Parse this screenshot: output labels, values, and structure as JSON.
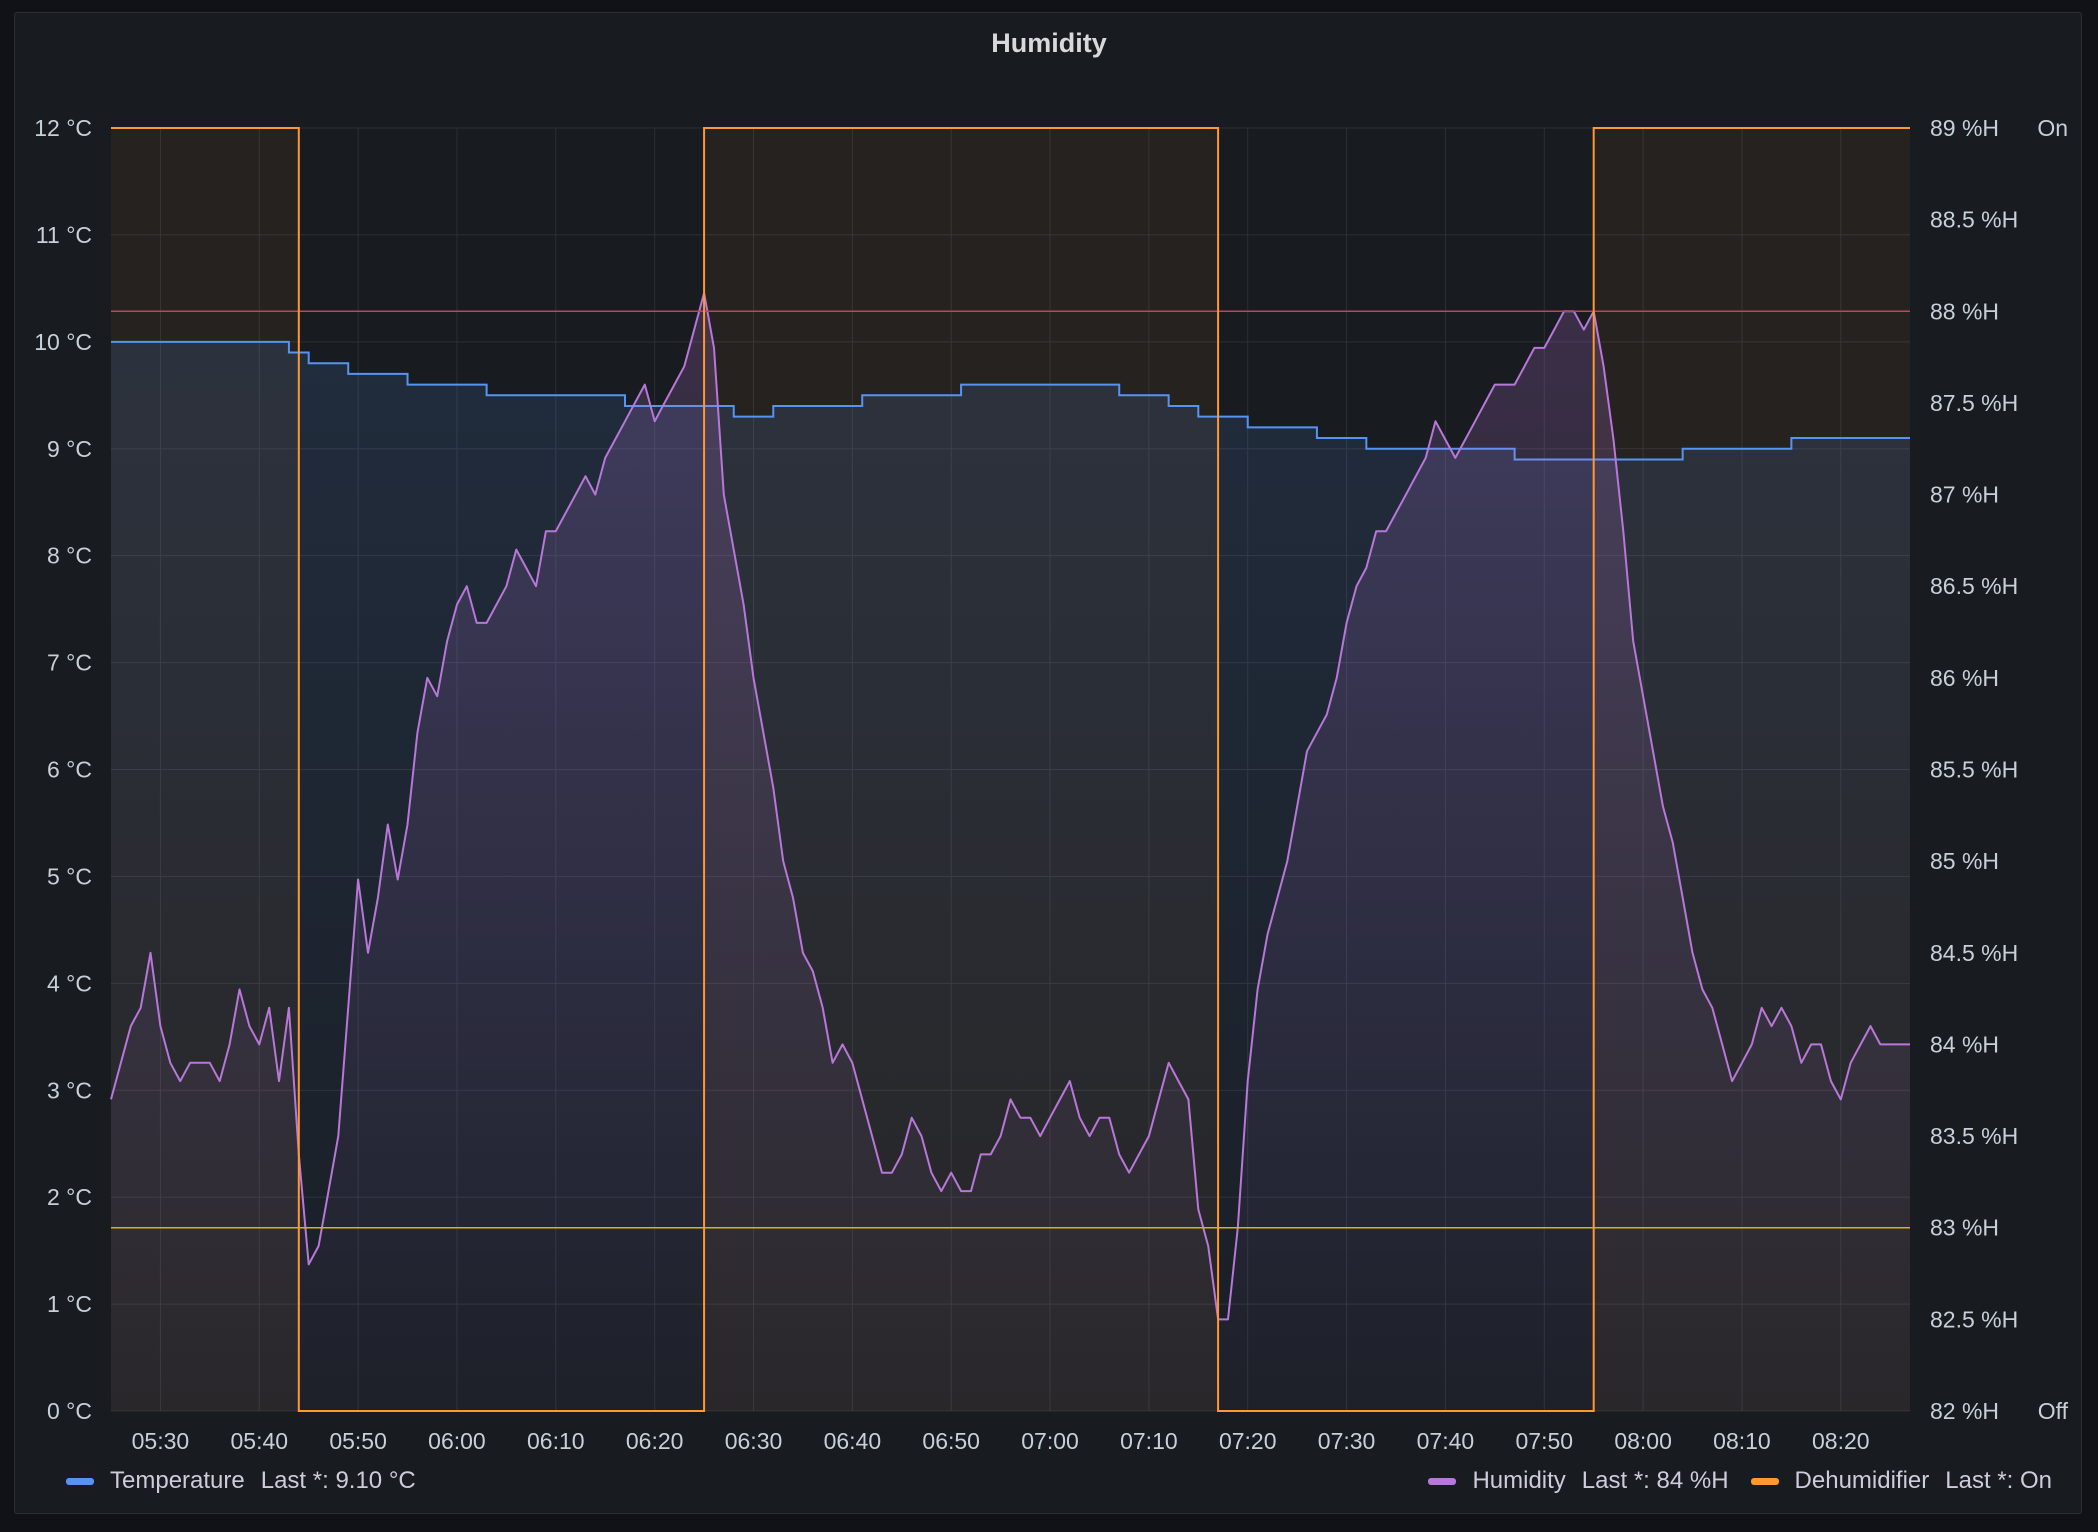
{
  "panel": {
    "title": "Humidity"
  },
  "colors": {
    "temperature": "#5794f2",
    "humidity": "#b877d9",
    "dehumidifier": "#ff9830",
    "threshold_high": "#c4454f",
    "threshold_low": "#e0b400",
    "grid": "#2c2f36",
    "tick_text": "#c7d0d9"
  },
  "legend": {
    "temperature": {
      "name": "Temperature",
      "value": "Last *: 9.10 °C"
    },
    "humidity": {
      "name": "Humidity",
      "value": "Last *: 84 %H"
    },
    "dehumidifier": {
      "name": "Dehumidifier",
      "value": "Last *: On"
    }
  },
  "chart_data": {
    "type": "line",
    "title": "Humidity",
    "x_range": [
      "05:25",
      "08:27"
    ],
    "x_ticks": [
      "05:30",
      "05:40",
      "05:50",
      "06:00",
      "06:10",
      "06:20",
      "06:30",
      "06:40",
      "06:50",
      "07:00",
      "07:10",
      "07:20",
      "07:30",
      "07:40",
      "07:50",
      "08:00",
      "08:10",
      "08:20"
    ],
    "y_left": {
      "unit": "°C",
      "range": [
        0,
        12
      ],
      "ticks": [
        "0 °C",
        "1 °C",
        "2 °C",
        "3 °C",
        "4 °C",
        "5 °C",
        "6 °C",
        "7 °C",
        "8 °C",
        "9 °C",
        "10 °C",
        "11 °C",
        "12 °C"
      ]
    },
    "y_right": {
      "unit": "%H",
      "range": [
        82,
        89
      ],
      "ticks": [
        "82 %H",
        "82.5 %H",
        "83 %H",
        "83.5 %H",
        "84 %H",
        "84.5 %H",
        "85 %H",
        "85.5 %H",
        "86 %H",
        "86.5 %H",
        "87 %H",
        "87.5 %H",
        "88 %H",
        "88.5 %H",
        "89 %H"
      ]
    },
    "y_state": {
      "ticks": [
        "Off",
        "On"
      ]
    },
    "grid": true,
    "legend_position": "bottom",
    "thresholds": [
      {
        "axis": "right",
        "value": 88
      },
      {
        "axis": "right",
        "value": 83
      }
    ],
    "series": [
      {
        "name": "Temperature",
        "axis": "left",
        "step": true,
        "fill": true,
        "points": [
          [
            "05:25",
            10.0
          ],
          [
            "05:42",
            10.0
          ],
          [
            "05:43",
            9.9
          ],
          [
            "05:45",
            9.8
          ],
          [
            "05:48",
            9.8
          ],
          [
            "05:49",
            9.7
          ],
          [
            "05:54",
            9.7
          ],
          [
            "05:55",
            9.6
          ],
          [
            "06:02",
            9.6
          ],
          [
            "06:03",
            9.5
          ],
          [
            "06:16",
            9.5
          ],
          [
            "06:17",
            9.4
          ],
          [
            "06:27",
            9.4
          ],
          [
            "06:28",
            9.3
          ],
          [
            "06:31",
            9.3
          ],
          [
            "06:32",
            9.4
          ],
          [
            "06:40",
            9.4
          ],
          [
            "06:41",
            9.5
          ],
          [
            "06:50",
            9.5
          ],
          [
            "06:51",
            9.6
          ],
          [
            "07:06",
            9.6
          ],
          [
            "07:07",
            9.5
          ],
          [
            "07:11",
            9.5
          ],
          [
            "07:12",
            9.4
          ],
          [
            "07:14",
            9.4
          ],
          [
            "07:15",
            9.3
          ],
          [
            "07:19",
            9.3
          ],
          [
            "07:20",
            9.2
          ],
          [
            "07:26",
            9.2
          ],
          [
            "07:27",
            9.1
          ],
          [
            "07:31",
            9.1
          ],
          [
            "07:32",
            9.0
          ],
          [
            "07:46",
            9.0
          ],
          [
            "07:47",
            8.9
          ],
          [
            "08:03",
            8.9
          ],
          [
            "08:04",
            9.0
          ],
          [
            "08:14",
            9.0
          ],
          [
            "08:15",
            9.1
          ],
          [
            "08:27",
            9.1
          ]
        ]
      },
      {
        "name": "Humidity",
        "axis": "right",
        "step": false,
        "fill": true,
        "points": [
          [
            "05:25",
            83.7
          ],
          [
            "05:26",
            83.9
          ],
          [
            "05:27",
            84.1
          ],
          [
            "05:28",
            84.2
          ],
          [
            "05:29",
            84.5
          ],
          [
            "05:30",
            84.1
          ],
          [
            "05:31",
            83.9
          ],
          [
            "05:32",
            83.8
          ],
          [
            "05:33",
            83.9
          ],
          [
            "05:35",
            83.9
          ],
          [
            "05:36",
            83.8
          ],
          [
            "05:37",
            84.0
          ],
          [
            "05:38",
            84.3
          ],
          [
            "05:39",
            84.1
          ],
          [
            "05:40",
            84.0
          ],
          [
            "05:41",
            84.2
          ],
          [
            "05:42",
            83.8
          ],
          [
            "05:43",
            84.2
          ],
          [
            "05:44",
            83.4
          ],
          [
            "05:45",
            82.8
          ],
          [
            "05:46",
            82.9
          ],
          [
            "05:47",
            83.2
          ],
          [
            "05:48",
            83.5
          ],
          [
            "05:49",
            84.2
          ],
          [
            "05:50",
            84.9
          ],
          [
            "05:51",
            84.5
          ],
          [
            "05:52",
            84.8
          ],
          [
            "05:53",
            85.2
          ],
          [
            "05:54",
            84.9
          ],
          [
            "05:55",
            85.2
          ],
          [
            "05:56",
            85.7
          ],
          [
            "05:57",
            86.0
          ],
          [
            "05:58",
            85.9
          ],
          [
            "05:59",
            86.2
          ],
          [
            "06:00",
            86.4
          ],
          [
            "06:01",
            86.5
          ],
          [
            "06:02",
            86.3
          ],
          [
            "06:03",
            86.3
          ],
          [
            "06:04",
            86.4
          ],
          [
            "06:05",
            86.5
          ],
          [
            "06:06",
            86.7
          ],
          [
            "06:07",
            86.6
          ],
          [
            "06:08",
            86.5
          ],
          [
            "06:09",
            86.8
          ],
          [
            "06:10",
            86.8
          ],
          [
            "06:11",
            86.9
          ],
          [
            "06:12",
            87.0
          ],
          [
            "06:13",
            87.1
          ],
          [
            "06:14",
            87.0
          ],
          [
            "06:15",
            87.2
          ],
          [
            "06:16",
            87.3
          ],
          [
            "06:17",
            87.4
          ],
          [
            "06:18",
            87.5
          ],
          [
            "06:19",
            87.6
          ],
          [
            "06:20",
            87.4
          ],
          [
            "06:21",
            87.5
          ],
          [
            "06:22",
            87.6
          ],
          [
            "06:23",
            87.7
          ],
          [
            "06:24",
            87.9
          ],
          [
            "06:25",
            88.1
          ],
          [
            "06:26",
            87.8
          ],
          [
            "06:27",
            87.0
          ],
          [
            "06:28",
            86.7
          ],
          [
            "06:29",
            86.4
          ],
          [
            "06:30",
            86.0
          ],
          [
            "06:31",
            85.7
          ],
          [
            "06:32",
            85.4
          ],
          [
            "06:33",
            85.0
          ],
          [
            "06:34",
            84.8
          ],
          [
            "06:35",
            84.5
          ],
          [
            "06:36",
            84.4
          ],
          [
            "06:37",
            84.2
          ],
          [
            "06:38",
            83.9
          ],
          [
            "06:39",
            84.0
          ],
          [
            "06:40",
            83.9
          ],
          [
            "06:41",
            83.7
          ],
          [
            "06:42",
            83.5
          ],
          [
            "06:43",
            83.3
          ],
          [
            "06:44",
            83.3
          ],
          [
            "06:45",
            83.4
          ],
          [
            "06:46",
            83.6
          ],
          [
            "06:47",
            83.5
          ],
          [
            "06:48",
            83.3
          ],
          [
            "06:49",
            83.2
          ],
          [
            "06:50",
            83.3
          ],
          [
            "06:51",
            83.2
          ],
          [
            "06:52",
            83.2
          ],
          [
            "06:53",
            83.4
          ],
          [
            "06:54",
            83.4
          ],
          [
            "06:55",
            83.5
          ],
          [
            "06:56",
            83.7
          ],
          [
            "06:57",
            83.6
          ],
          [
            "06:58",
            83.6
          ],
          [
            "06:59",
            83.5
          ],
          [
            "07:00",
            83.6
          ],
          [
            "07:01",
            83.7
          ],
          [
            "07:02",
            83.8
          ],
          [
            "07:03",
            83.6
          ],
          [
            "07:04",
            83.5
          ],
          [
            "07:05",
            83.6
          ],
          [
            "07:06",
            83.6
          ],
          [
            "07:07",
            83.4
          ],
          [
            "07:08",
            83.3
          ],
          [
            "07:09",
            83.4
          ],
          [
            "07:10",
            83.5
          ],
          [
            "07:11",
            83.7
          ],
          [
            "07:12",
            83.9
          ],
          [
            "07:13",
            83.8
          ],
          [
            "07:14",
            83.7
          ],
          [
            "07:15",
            83.1
          ],
          [
            "07:16",
            82.9
          ],
          [
            "07:17",
            82.5
          ],
          [
            "07:18",
            82.5
          ],
          [
            "07:19",
            83.0
          ],
          [
            "07:20",
            83.8
          ],
          [
            "07:21",
            84.3
          ],
          [
            "07:22",
            84.6
          ],
          [
            "07:23",
            84.8
          ],
          [
            "07:24",
            85.0
          ],
          [
            "07:25",
            85.3
          ],
          [
            "07:26",
            85.6
          ],
          [
            "07:27",
            85.7
          ],
          [
            "07:28",
            85.8
          ],
          [
            "07:29",
            86.0
          ],
          [
            "07:30",
            86.3
          ],
          [
            "07:31",
            86.5
          ],
          [
            "07:32",
            86.6
          ],
          [
            "07:33",
            86.8
          ],
          [
            "07:34",
            86.8
          ],
          [
            "07:35",
            86.9
          ],
          [
            "07:36",
            87.0
          ],
          [
            "07:37",
            87.1
          ],
          [
            "07:38",
            87.2
          ],
          [
            "07:39",
            87.4
          ],
          [
            "07:40",
            87.3
          ],
          [
            "07:41",
            87.2
          ],
          [
            "07:42",
            87.3
          ],
          [
            "07:43",
            87.4
          ],
          [
            "07:44",
            87.5
          ],
          [
            "07:45",
            87.6
          ],
          [
            "07:46",
            87.6
          ],
          [
            "07:47",
            87.6
          ],
          [
            "07:48",
            87.7
          ],
          [
            "07:49",
            87.8
          ],
          [
            "07:50",
            87.8
          ],
          [
            "07:51",
            87.9
          ],
          [
            "07:52",
            88.0
          ],
          [
            "07:53",
            88.0
          ],
          [
            "07:54",
            87.9
          ],
          [
            "07:55",
            88.0
          ],
          [
            "07:56",
            87.7
          ],
          [
            "07:57",
            87.3
          ],
          [
            "07:58",
            86.8
          ],
          [
            "07:59",
            86.2
          ],
          [
            "08:00",
            85.9
          ],
          [
            "08:01",
            85.6
          ],
          [
            "08:02",
            85.3
          ],
          [
            "08:03",
            85.1
          ],
          [
            "08:04",
            84.8
          ],
          [
            "08:05",
            84.5
          ],
          [
            "08:06",
            84.3
          ],
          [
            "08:07",
            84.2
          ],
          [
            "08:08",
            84.0
          ],
          [
            "08:09",
            83.8
          ],
          [
            "08:10",
            83.9
          ],
          [
            "08:11",
            84.0
          ],
          [
            "08:12",
            84.2
          ],
          [
            "08:13",
            84.1
          ],
          [
            "08:14",
            84.2
          ],
          [
            "08:15",
            84.1
          ],
          [
            "08:16",
            83.9
          ],
          [
            "08:17",
            84.0
          ],
          [
            "08:18",
            84.0
          ],
          [
            "08:19",
            83.8
          ],
          [
            "08:20",
            83.7
          ],
          [
            "08:21",
            83.9
          ],
          [
            "08:22",
            84.0
          ],
          [
            "08:23",
            84.1
          ],
          [
            "08:24",
            84.0
          ],
          [
            "08:27",
            84.0
          ]
        ]
      },
      {
        "name": "Dehumidifier",
        "axis": "state",
        "step": true,
        "fill": true,
        "points": [
          [
            "05:25",
            1
          ],
          [
            "05:43",
            1
          ],
          [
            "05:44",
            0
          ],
          [
            "06:24",
            0
          ],
          [
            "06:25",
            1
          ],
          [
            "07:16",
            1
          ],
          [
            "07:17",
            0
          ],
          [
            "07:54",
            0
          ],
          [
            "07:55",
            1
          ],
          [
            "08:27",
            1
          ]
        ]
      }
    ]
  }
}
